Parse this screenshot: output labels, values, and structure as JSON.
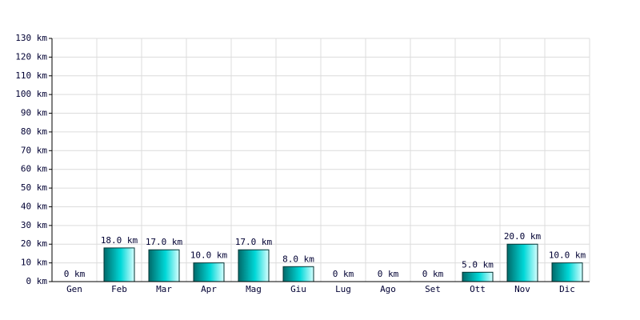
{
  "chart_data": {
    "type": "bar",
    "categories": [
      "Gen",
      "Feb",
      "Mar",
      "Apr",
      "Mag",
      "Giu",
      "Lug",
      "Ago",
      "Set",
      "Ott",
      "Nov",
      "Dic"
    ],
    "values": [
      0,
      18,
      17,
      10,
      17,
      8,
      0,
      0,
      0,
      5,
      20,
      10
    ],
    "value_labels": [
      "0 km",
      "18.0 km",
      "17.0 km",
      "10.0 km",
      "17.0 km",
      "8.0 km",
      "0 km",
      "0 km",
      "0 km",
      "5.0 km",
      "20.0 km",
      "10.0 km"
    ],
    "color": "#00d8d8",
    "ylim": [
      0,
      130
    ],
    "yticks": [
      {
        "value": 0,
        "label": "0 km"
      },
      {
        "value": 10,
        "label": "10 km"
      },
      {
        "value": 20,
        "label": "20 km"
      },
      {
        "value": 30,
        "label": "30 km"
      },
      {
        "value": 40,
        "label": "40 km"
      },
      {
        "value": 50,
        "label": "50 km"
      },
      {
        "value": 60,
        "label": "60 km"
      },
      {
        "value": 70,
        "label": "70 km"
      },
      {
        "value": 80,
        "label": "80 km"
      },
      {
        "value": 90,
        "label": "90 km"
      },
      {
        "value": 100,
        "label": "100 km"
      },
      {
        "value": 110,
        "label": "110 km"
      },
      {
        "value": 120,
        "label": "120 km"
      },
      {
        "value": 130,
        "label": "130 km"
      }
    ],
    "grid": true
  }
}
